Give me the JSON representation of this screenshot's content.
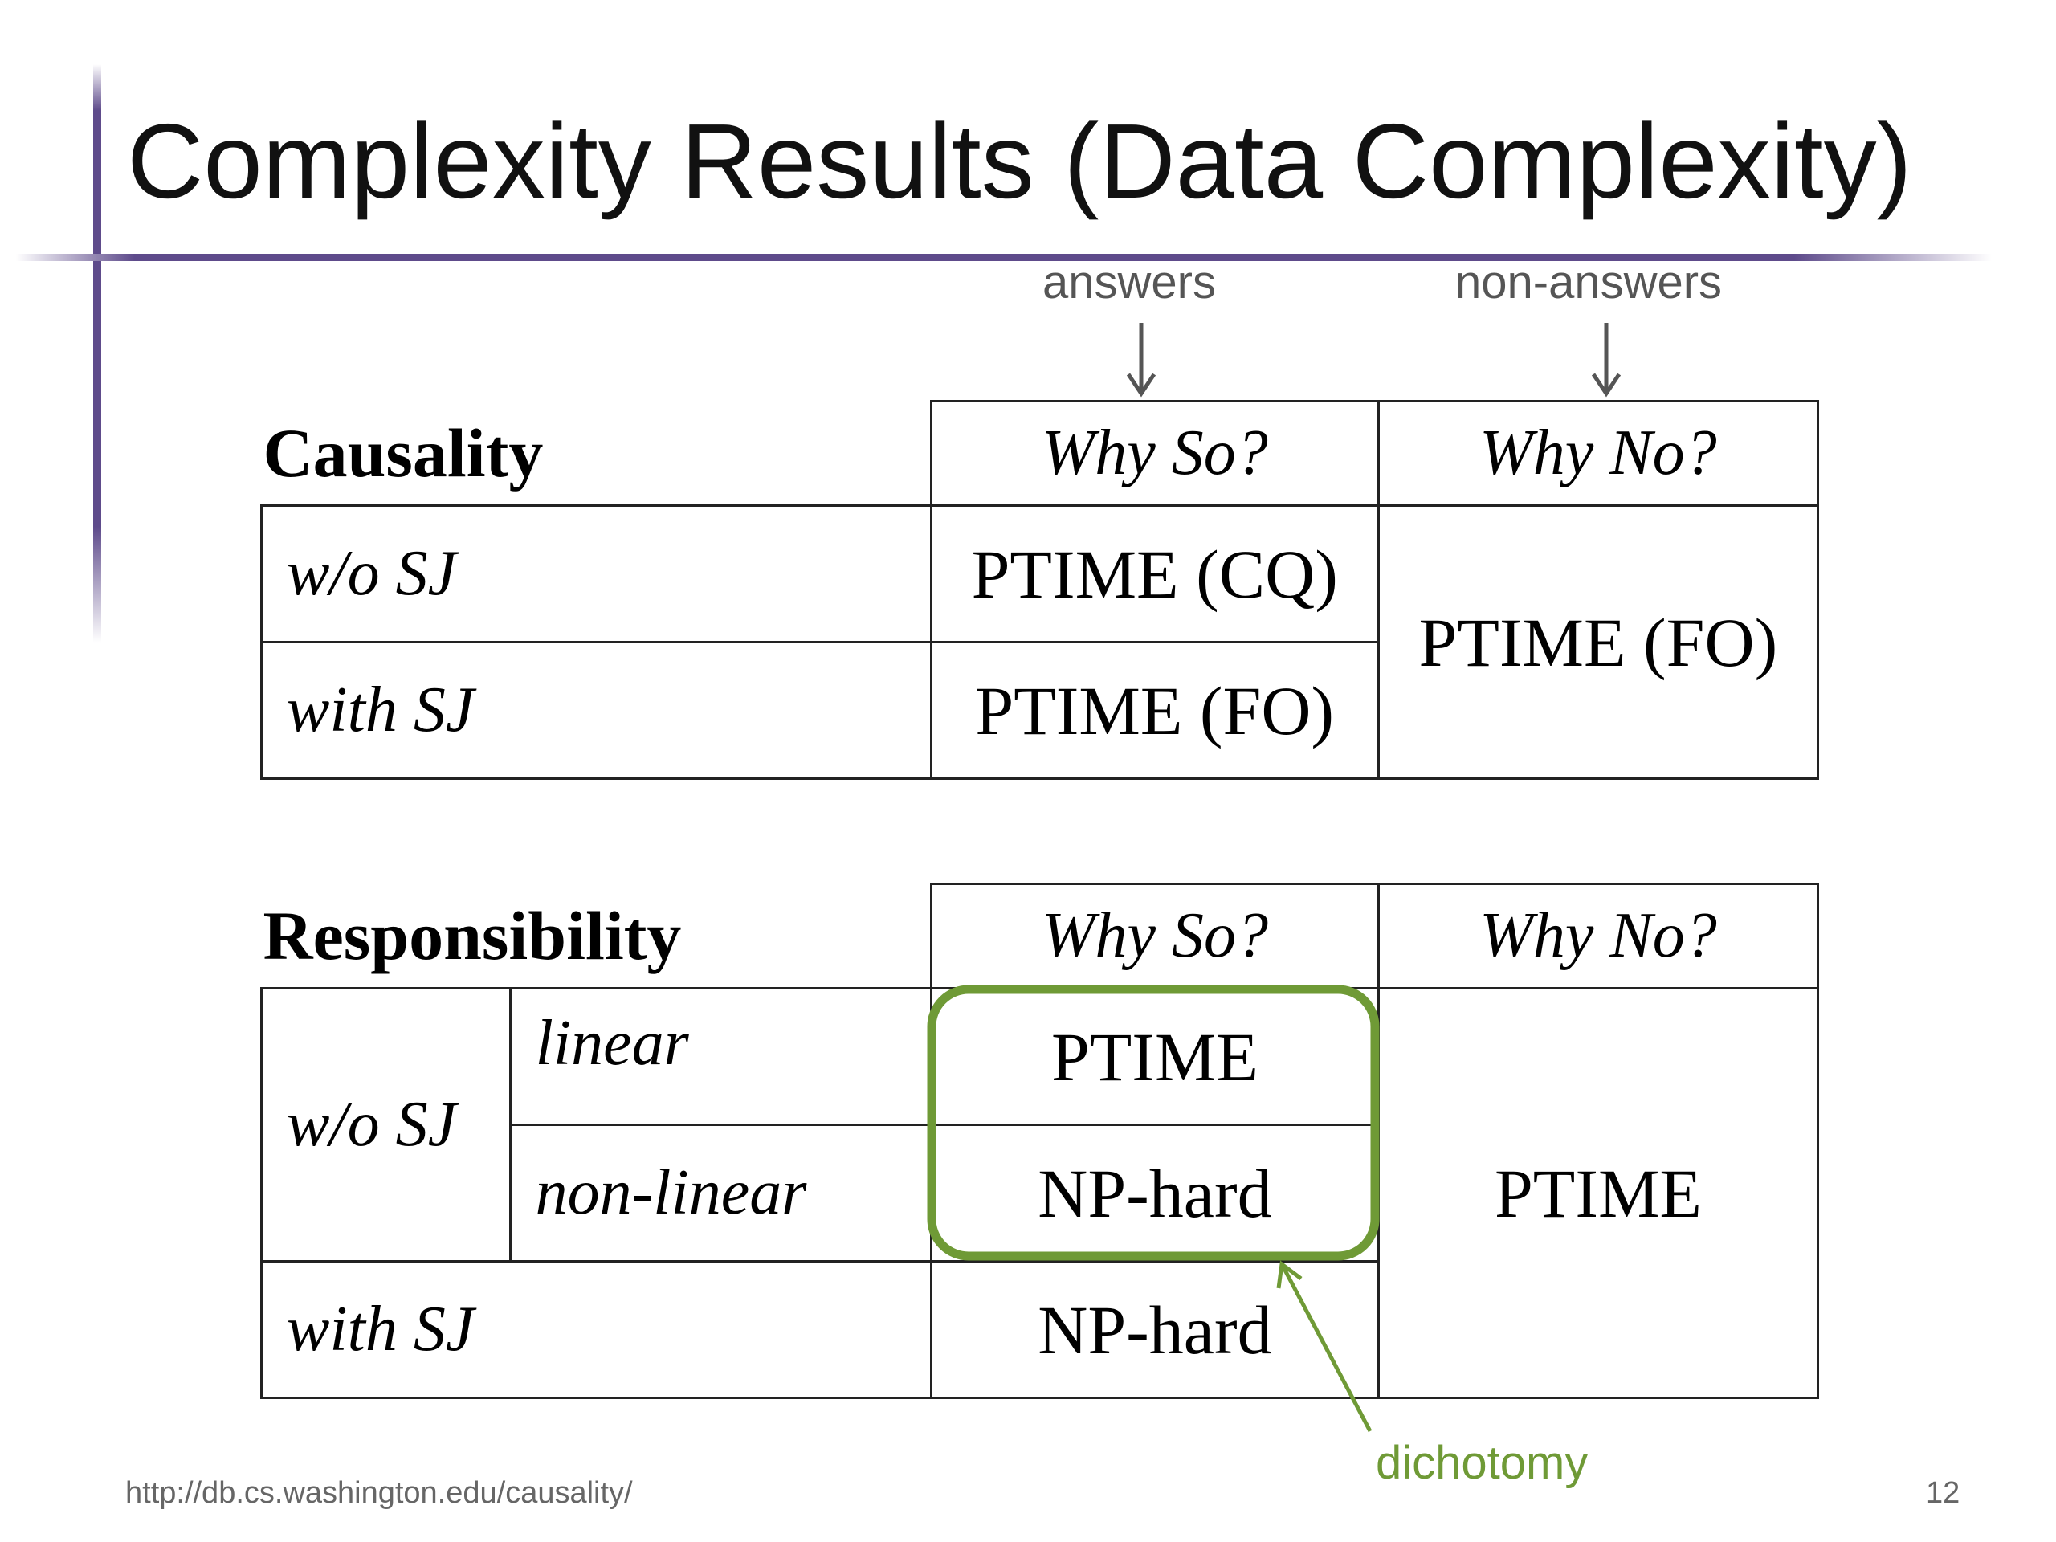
{
  "slide": {
    "title": "Complexity Results (Data Complexity)",
    "annotations": {
      "answers": "answers",
      "non_answers": "non-answers",
      "dichotomy": "dichotomy"
    },
    "footer": {
      "url": "http://db.cs.washington.edu/causality/",
      "page_number": "12"
    },
    "accent_color": "#5e4b8b",
    "highlight_color": "#6f9a36"
  },
  "causality_table": {
    "header": {
      "label": "Causality",
      "why_so": "Why So?",
      "why_no": "Why No?"
    },
    "rows": [
      {
        "label": "w/o SJ",
        "why_so": "PTIME (CQ)"
      },
      {
        "label": "with SJ",
        "why_so": "PTIME (FO)"
      }
    ],
    "why_no_value": "PTIME (FO)"
  },
  "responsibility_table": {
    "header": {
      "label": "Responsibility",
      "why_so": "Why So?",
      "why_no": "Why No?"
    },
    "wo_sj_label": "w/o SJ",
    "sub_rows": [
      {
        "label": "linear",
        "why_so": "PTIME"
      },
      {
        "label": "non-linear",
        "why_so": "NP-hard"
      }
    ],
    "with_sj": {
      "label": "with SJ",
      "why_so": "NP-hard"
    },
    "why_no_value": "PTIME"
  }
}
